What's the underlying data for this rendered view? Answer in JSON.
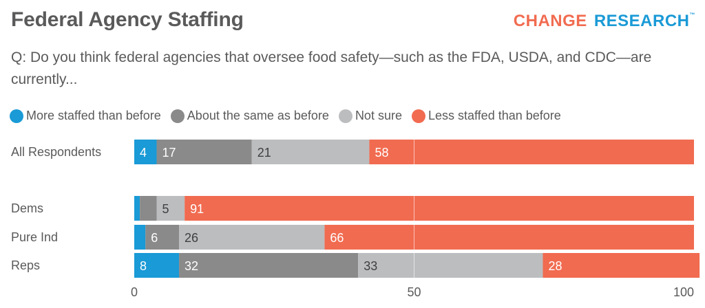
{
  "header": {
    "title": "Federal Agency Staffing",
    "logo_part1": "CHANGE",
    "logo_part2": "RESEARCH",
    "logo_tm": "™"
  },
  "chart_data": {
    "type": "bar",
    "orientation": "horizontal",
    "stacked": true,
    "title": "Federal Agency Staffing",
    "subtitle": "Q: Do you think federal agencies that oversee food safety—such as the FDA, USDA, and CDC—are currently...",
    "xlabel": "",
    "ylabel": "",
    "xlim": [
      0,
      100
    ],
    "x_ticks": [
      "0",
      "50",
      "100"
    ],
    "grid": "vertical line at 50",
    "legend_position": "top-left",
    "categories": [
      "All Respondents",
      "Dems",
      "Pure Ind",
      "Reps"
    ],
    "series": [
      {
        "name": "More staffed than before",
        "color": "#1a9ad6",
        "text_color": "#ffffff",
        "values": [
          4,
          1,
          2,
          8
        ],
        "labels": [
          "4",
          "",
          "",
          "8"
        ]
      },
      {
        "name": "About the same as before",
        "color": "#8a8a8a",
        "text_color": "#ffffff",
        "values": [
          17,
          3,
          6,
          32
        ],
        "labels": [
          "17",
          "",
          "6",
          "32"
        ]
      },
      {
        "name": "Not sure",
        "color": "#bcbdbf",
        "text_color": "#3f3f40",
        "values": [
          21,
          5,
          26,
          33
        ],
        "labels": [
          "21",
          "5",
          "26",
          "33"
        ]
      },
      {
        "name": "Less staffed than before",
        "color": "#f16b50",
        "text_color": "#ffffff",
        "values": [
          58,
          91,
          66,
          28
        ],
        "labels": [
          "58",
          "91",
          "66",
          "28"
        ]
      }
    ]
  }
}
